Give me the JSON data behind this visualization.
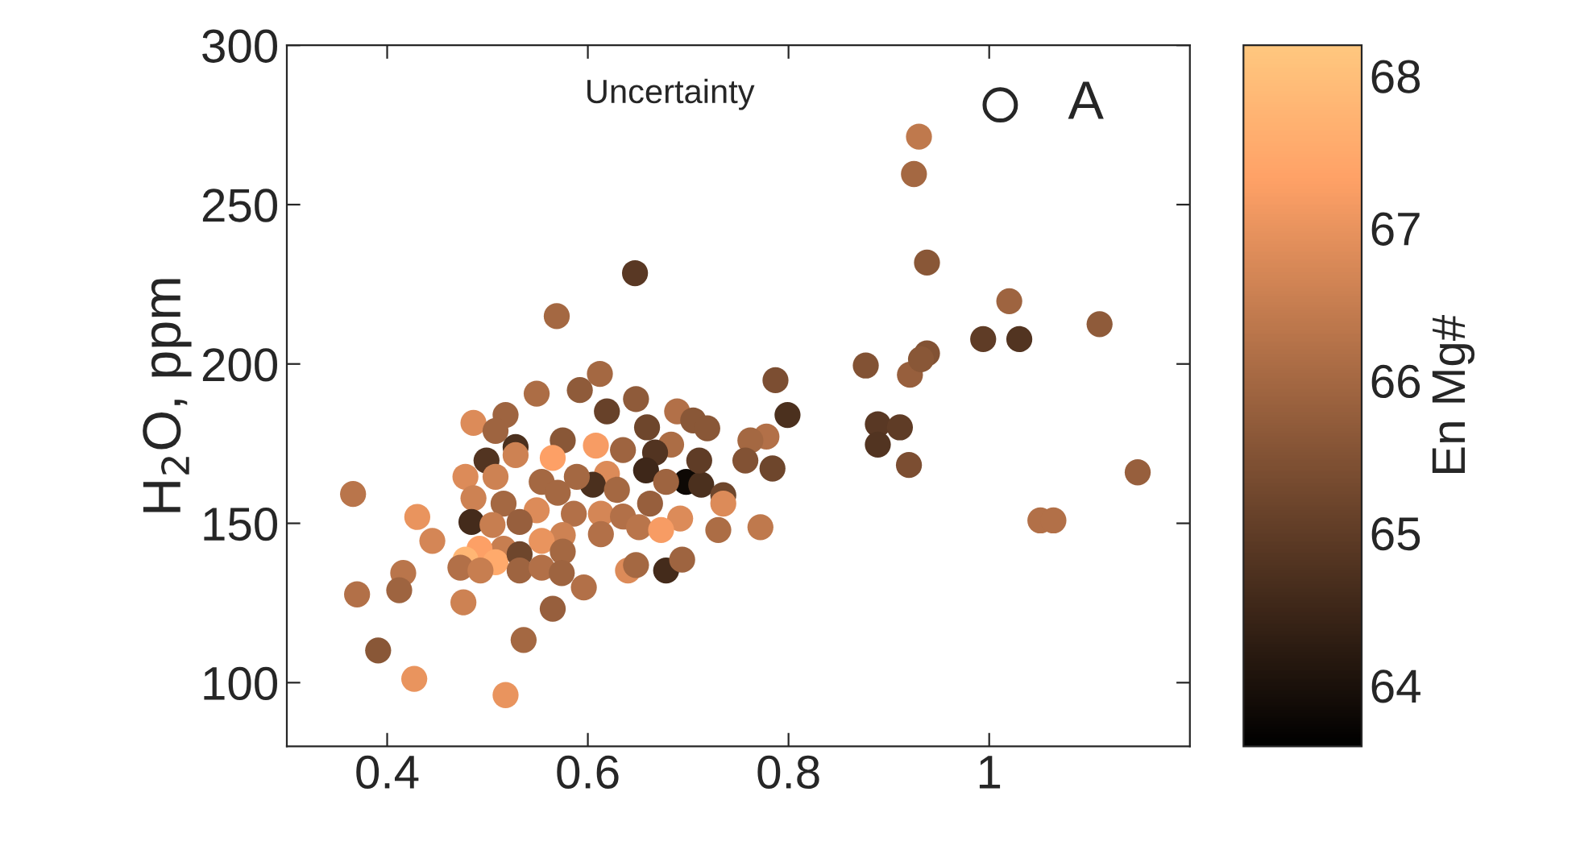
{
  "chart_data": {
    "type": "scatter",
    "ylabel": "H$_{2}$O, ppm",
    "clabel": "En Mg#",
    "annotations": [
      "Uncertainty",
      "A"
    ],
    "xlim": [
      0.3,
      1.2
    ],
    "xticks": [
      0.4,
      0.6,
      0.8,
      1
    ],
    "ylim": [
      80,
      300
    ],
    "yticks": [
      100,
      150,
      200,
      250,
      300
    ],
    "clim": [
      63.6,
      68.2
    ],
    "cticks": [
      64,
      65,
      66,
      67,
      68
    ],
    "grid": false,
    "marker": "circle",
    "series": [
      {
        "x": [
          0.647,
          0.569,
          0.612,
          0.549,
          0.592,
          0.648,
          0.619,
          0.689,
          0.705,
          0.486,
          0.518,
          0.508,
          0.659,
          0.575,
          0.608,
          0.565,
          0.528,
          0.499,
          0.528,
          0.683,
          0.667,
          0.635,
          0.658,
          0.698,
          0.713,
          0.678,
          0.478,
          0.508,
          0.619,
          0.605,
          0.589,
          0.554,
          0.629,
          0.486,
          0.516,
          0.549,
          0.57,
          0.662,
          0.692,
          0.484,
          0.505,
          0.532,
          0.586,
          0.613,
          0.635,
          0.651,
          0.673,
          0.575,
          0.613,
          0.554,
          0.516,
          0.492,
          0.508,
          0.478,
          0.532,
          0.575,
          0.473,
          0.493,
          0.532,
          0.554,
          0.574,
          0.64,
          0.648,
          0.678,
          0.694,
          0.43,
          0.445,
          0.366,
          0.416,
          0.412,
          0.37,
          0.476,
          0.565,
          0.596,
          0.536,
          0.391,
          0.427,
          0.518,
          0.938,
          0.938,
          0.921,
          0.877,
          0.787,
          0.799,
          0.889,
          0.911,
          0.889,
          0.92,
          0.778,
          0.762,
          0.757,
          0.784,
          0.735,
          0.735,
          0.711,
          0.719,
          0.73,
          0.772,
          0.93,
          0.925,
          1.02,
          0.994,
          1.03,
          1.11,
          0.932,
          1.148,
          1.051,
          1.064
        ],
        "values": [
          228.5,
          215,
          196.9,
          190.7,
          191.8,
          189,
          185.1,
          185.1,
          182.3,
          181.5,
          184,
          179,
          180.1,
          176,
          174.4,
          170.5,
          173.9,
          169.7,
          171.4,
          174.7,
          172.2,
          173,
          166.6,
          163,
          162.1,
          163,
          164.6,
          164.6,
          165.5,
          162.1,
          164.6,
          163,
          160.5,
          157.9,
          156.2,
          154.1,
          159.6,
          156.2,
          151.5,
          150.4,
          149.5,
          150.4,
          153,
          153,
          152.1,
          148.8,
          147.9,
          146.3,
          146.6,
          144.5,
          142,
          142,
          137.8,
          138.6,
          140.3,
          141.1,
          136.1,
          135.2,
          135.2,
          136.1,
          134.4,
          135.2,
          136.9,
          135.2,
          138.6,
          152,
          144.5,
          159.2,
          134.4,
          129,
          127.7,
          125.2,
          123.2,
          129.9,
          113.4,
          110.1,
          101.2,
          96.1,
          231.8,
          203.3,
          196.6,
          199.5,
          194.9,
          184,
          181.1,
          180.1,
          174.7,
          168.3,
          177.2,
          176,
          169.7,
          167.2,
          158.8,
          156.2,
          169.7,
          179.8,
          147.9,
          148.8,
          271.3,
          259.6,
          219.7,
          207.8,
          207.8,
          212.5,
          201.5,
          166,
          150.9,
          150.9
        ],
        "cvalues": [
          64.9,
          66.0,
          66,
          66.1,
          65.7,
          65.7,
          65.1,
          66.2,
          65.6,
          66.8,
          65.9,
          65.9,
          65.2,
          65.6,
          67.2,
          67.3,
          64.7,
          64.8,
          66.6,
          66.1,
          64.8,
          65.9,
          64.5,
          63.8,
          64.7,
          65.9,
          66.8,
          66.6,
          66.8,
          64.7,
          66.0,
          66.0,
          66.0,
          66.6,
          66.0,
          66.8,
          66.0,
          65.8,
          66.8,
          64.6,
          66.5,
          65.8,
          66.2,
          66.7,
          66.2,
          66.3,
          67.2,
          66.6,
          66.2,
          67.0,
          66.5,
          67.3,
          67.5,
          67.8,
          65.2,
          66.0,
          66.2,
          66.5,
          65.9,
          66.2,
          65.9,
          66.8,
          66.0,
          64.6,
          65.9,
          67.0,
          66.7,
          66.3,
          66.3,
          65.9,
          66.2,
          66.6,
          65.8,
          66.2,
          66.0,
          65.6,
          67.0,
          67.0,
          65.6,
          65.5,
          65.8,
          65.5,
          65.4,
          64.7,
          64.9,
          65.0,
          64.8,
          65.4,
          66.2,
          66.0,
          65.5,
          65.2,
          65.2,
          66.8,
          65.0,
          65.6,
          66.1,
          66.4,
          66.4,
          66.0,
          65.9,
          65.0,
          64.8,
          65.7,
          65.6,
          65.8,
          66.2,
          66.2
        ]
      }
    ]
  }
}
